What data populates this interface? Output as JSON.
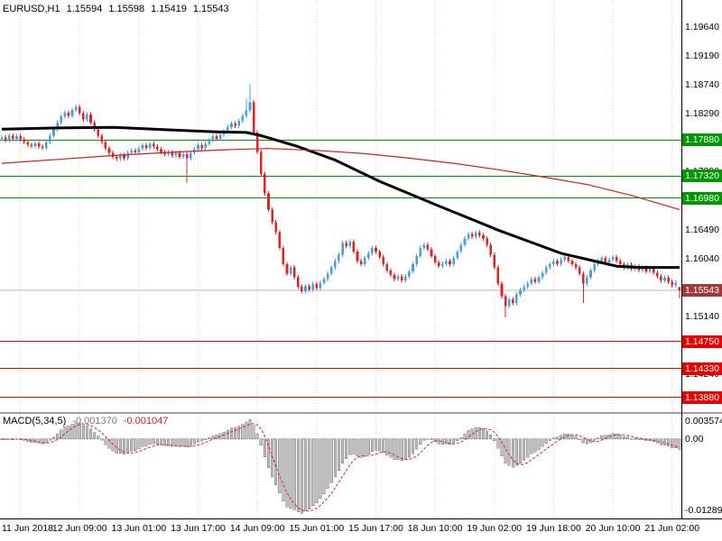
{
  "header": {
    "symbol_period": "EURUSD,H1",
    "open": "1.15594",
    "high": "1.15598",
    "low": "1.15419",
    "close": "1.15543"
  },
  "macd": {
    "label": "MACD(5,34,5)",
    "main_value": "-0.001370",
    "signal_value": "-0.001047",
    "scale_max": "0.003574",
    "scale_zero": "0.00",
    "scale_min": "-0.012892"
  },
  "price_axis": {
    "ticks": [
      {
        "label": "1.19640",
        "price": 1.1964
      },
      {
        "label": "1.19190",
        "price": 1.1919
      },
      {
        "label": "1.18740",
        "price": 1.1874
      },
      {
        "label": "1.18290",
        "price": 1.1829
      },
      {
        "label": "1.17390",
        "price": 1.1739
      },
      {
        "label": "1.16490",
        "price": 1.1649
      },
      {
        "label": "1.16040",
        "price": 1.1604
      },
      {
        "label": "1.15140",
        "price": 1.1514
      },
      {
        "label": "1.14240",
        "price": 1.1424
      }
    ],
    "levels": [
      {
        "label": "1.17880",
        "price": 1.1788,
        "kind": "resistance"
      },
      {
        "label": "1.17320",
        "price": 1.1732,
        "kind": "resistance"
      },
      {
        "label": "1.16980",
        "price": 1.1698,
        "kind": "resistance"
      },
      {
        "label": "1.14750",
        "price": 1.1475,
        "kind": "support"
      },
      {
        "label": "1.14330",
        "price": 1.1433,
        "kind": "support"
      },
      {
        "label": "1.13880",
        "price": 1.1388,
        "kind": "support"
      }
    ],
    "current": {
      "label": "1.15543",
      "price": 1.15543
    }
  },
  "time_axis": {
    "labels": [
      {
        "text": "11 Jun 2018",
        "index": 5
      },
      {
        "text": "12 Jun 09:00",
        "index": 21
      },
      {
        "text": "13 Jun 01:00",
        "index": 37
      },
      {
        "text": "13 Jun 17:00",
        "index": 53
      },
      {
        "text": "14 Jun 09:00",
        "index": 69
      },
      {
        "text": "15 Jun 01:00",
        "index": 85
      },
      {
        "text": "15 Jun 17:00",
        "index": 101
      },
      {
        "text": "18 Jun 10:00",
        "index": 117
      },
      {
        "text": "19 Jun 02:00",
        "index": 133
      },
      {
        "text": "19 Jun 18:00",
        "index": 149
      },
      {
        "text": "20 Jun 10:00",
        "index": 165
      },
      {
        "text": "21 Jun 02:00",
        "index": 181
      }
    ]
  },
  "chart_data": {
    "type": "candlestick",
    "title": "EURUSD,H1",
    "timeframe": "H1",
    "price_range": {
      "top": 1.2006,
      "bottom": 1.1365
    },
    "first_open": 1.179,
    "default_wick": 0.00035,
    "closes": [
      1.1792,
      1.1788,
      1.1795,
      1.179,
      1.1794,
      1.1789,
      1.1785,
      1.1781,
      1.1779,
      1.1783,
      1.1778,
      1.1776,
      1.1785,
      1.1795,
      1.1805,
      1.1815,
      1.1825,
      1.1831,
      1.1826,
      1.1835,
      1.184,
      1.183,
      1.182,
      1.1828,
      1.1815,
      1.1805,
      1.1795,
      1.1785,
      1.1775,
      1.1768,
      1.1762,
      1.1759,
      1.1765,
      1.176,
      1.1768,
      1.1772,
      1.1769,
      1.1775,
      1.178,
      1.1776,
      1.1782,
      1.1778,
      1.1774,
      1.177,
      1.1766,
      1.177,
      1.1764,
      1.1768,
      1.1762,
      1.1766,
      1.176,
      1.1768,
      1.1774,
      1.178,
      1.1776,
      1.1782,
      1.1788,
      1.1794,
      1.179,
      1.1796,
      1.1802,
      1.1808,
      1.1814,
      1.181,
      1.1818,
      1.1826,
      1.1834,
      1.1847,
      1.18,
      1.177,
      1.1735,
      1.1705,
      1.168,
      1.166,
      1.1645,
      1.162,
      1.1595,
      1.158,
      1.159,
      1.1575,
      1.156,
      1.1553,
      1.1561,
      1.1556,
      1.1564,
      1.1558,
      1.1566,
      1.1572,
      1.158,
      1.159,
      1.16,
      1.161,
      1.1628,
      1.1623,
      1.163,
      1.1615,
      1.16,
      1.1595,
      1.1605,
      1.1612,
      1.162,
      1.1615,
      1.1606,
      1.1595,
      1.1585,
      1.1578,
      1.1572,
      1.1576,
      1.157,
      1.1576,
      1.1584,
      1.1595,
      1.1608,
      1.162,
      1.1625,
      1.1618,
      1.1608,
      1.1598,
      1.1592,
      1.1596,
      1.16,
      1.1595,
      1.1605,
      1.1615,
      1.1625,
      1.1635,
      1.1642,
      1.1638,
      1.1644,
      1.164,
      1.1635,
      1.1625,
      1.161,
      1.159,
      1.1565,
      1.1545,
      1.153,
      1.154,
      1.1535,
      1.1548,
      1.1555,
      1.156,
      1.1565,
      1.1572,
      1.1568,
      1.1575,
      1.1582,
      1.159,
      1.1595,
      1.16,
      1.1596,
      1.1602,
      1.1606,
      1.16,
      1.1595,
      1.159,
      1.158,
      1.1565,
      1.1575,
      1.1585,
      1.1595,
      1.16,
      1.1605,
      1.1598,
      1.1602,
      1.1606,
      1.16,
      1.1595,
      1.159,
      1.1594,
      1.1588,
      1.1592,
      1.1586,
      1.159,
      1.1584,
      1.1588,
      1.1582,
      1.1576,
      1.157,
      1.1574,
      1.1568,
      1.1562,
      1.1566,
      1.15543
    ],
    "overrides": {
      "50": {
        "low": 1.1722
      },
      "66": {
        "high": 1.1852
      },
      "67": {
        "high": 1.1875
      },
      "136": {
        "low": 1.1512
      },
      "157": {
        "low": 1.1535
      },
      "183": {
        "open": 1.15594,
        "high": 1.15598,
        "low": 1.15419
      }
    },
    "moving_averages": [
      {
        "name": "ma-slow-black",
        "color": "#000000",
        "width": 3,
        "points": [
          [
            0,
            1.1805
          ],
          [
            15,
            1.1807
          ],
          [
            30,
            1.1808
          ],
          [
            45,
            1.1804
          ],
          [
            58,
            1.1801
          ],
          [
            66,
            1.18
          ],
          [
            70,
            1.1795
          ],
          [
            80,
            1.1778
          ],
          [
            90,
            1.1757
          ],
          [
            102,
            1.1724
          ],
          [
            117,
            1.1688
          ],
          [
            134,
            1.1648
          ],
          [
            151,
            1.1612
          ],
          [
            160,
            1.16
          ],
          [
            166,
            1.1592
          ],
          [
            172,
            1.159
          ],
          [
            183,
            1.159
          ]
        ]
      },
      {
        "name": "ma-trend-red",
        "color": "#cc2020",
        "width": 1.2,
        "points": [
          [
            0,
            1.1752
          ],
          [
            15,
            1.1758
          ],
          [
            30,
            1.1764
          ],
          [
            45,
            1.1769
          ],
          [
            60,
            1.1773
          ],
          [
            72,
            1.1775
          ],
          [
            85,
            1.1772
          ],
          [
            98,
            1.1767
          ],
          [
            110,
            1.176
          ],
          [
            122,
            1.1752
          ],
          [
            134,
            1.1742
          ],
          [
            146,
            1.1731
          ],
          [
            158,
            1.1719
          ],
          [
            170,
            1.1702
          ],
          [
            183,
            1.168
          ]
        ]
      }
    ],
    "indicator": {
      "name": "MACD",
      "fast": 5,
      "slow": 34,
      "signal": 5,
      "display_max": 0.003574,
      "display_min": -0.012892,
      "last_main": -0.00137,
      "last_signal": -0.001047
    },
    "levels": {
      "resistance": [
        1.1788,
        1.1732,
        1.1698
      ],
      "support": [
        1.1475,
        1.1433,
        1.1388
      ]
    },
    "current_price": 1.15543,
    "colors": {
      "up": "#4a9ede",
      "down": "#e02222",
      "grid": "#d6d6d6",
      "histogram_fill": "#c0c0c0",
      "histogram_border": "#787878",
      "signal_line": "#dd2222",
      "resistance": "#009600",
      "support": "#e00000",
      "current_price_line": "#b8b8b8",
      "current_badge": "#a03a3a",
      "axis_line": "#000000",
      "panel_divider": "#a0a0a0"
    }
  }
}
